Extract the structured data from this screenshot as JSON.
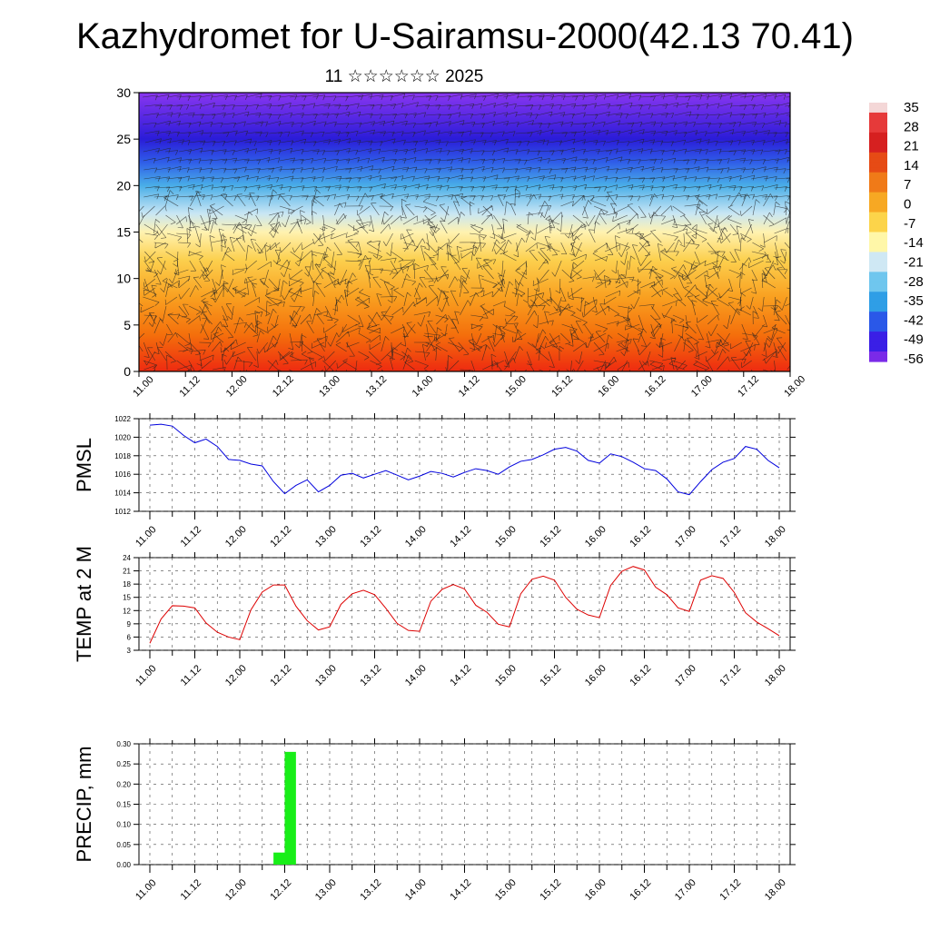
{
  "title": "Kazhydromet for U-Sairamsu-2000(42.13 70.41)",
  "subtitle": "11 ☆☆☆☆☆☆ 2025",
  "time_ticks": [
    "11.00",
    "11.12",
    "12.00",
    "12.12",
    "13.00",
    "13.12",
    "14.00",
    "14.12",
    "15.00",
    "15.12",
    "16.00",
    "16.12",
    "17.00",
    "17.12",
    "18.00"
  ],
  "chart_data": [
    {
      "type": "heatmap",
      "name": "cross-section",
      "ylim": [
        0,
        30
      ],
      "yticks": [
        0,
        5,
        10,
        15,
        20,
        25,
        30
      ],
      "colorbar": {
        "labels": [
          "35",
          "28",
          "21",
          "14",
          "7",
          "0",
          "-7",
          "-14",
          "-21",
          "-28",
          "-35",
          "-42",
          "-49",
          "-56"
        ],
        "colors": [
          "#f4d7d7",
          "#e63a3a",
          "#d62020",
          "#e64b15",
          "#f07a18",
          "#f7a823",
          "#fcd44a",
          "#fff7a8",
          "#cfe8f4",
          "#6fc6ee",
          "#2f9ee6",
          "#2a58e8",
          "#3a1fe6",
          "#7a2ae8"
        ]
      },
      "bands": [
        {
          "level": 0,
          "color": "#ee2a10"
        },
        {
          "level": 4,
          "color": "#f4700c"
        },
        {
          "level": 8,
          "color": "#f9a020"
        },
        {
          "level": 12,
          "color": "#fcd04e"
        },
        {
          "level": 15,
          "color": "#fff2b0"
        },
        {
          "level": 17,
          "color": "#c8e6f4"
        },
        {
          "level": 20,
          "color": "#49aee8"
        },
        {
          "level": 22.5,
          "color": "#2f5ee8"
        },
        {
          "level": 25,
          "color": "#2a1cd8"
        },
        {
          "level": 30,
          "color": "#8a36f0"
        }
      ]
    },
    {
      "type": "line",
      "ylabel": "PMSL",
      "ylim": [
        1012,
        1022
      ],
      "yticks": [
        1012,
        1014,
        1016,
        1018,
        1020,
        1022
      ],
      "color": "#0000dd",
      "x": [
        0,
        3,
        6,
        9,
        12,
        15,
        18,
        21,
        24,
        27,
        30,
        33,
        36,
        39,
        42,
        45,
        48,
        51,
        54,
        57,
        60,
        63,
        66,
        69,
        72,
        75,
        78,
        81,
        84,
        87,
        90,
        93,
        96,
        99,
        102,
        105,
        108,
        111,
        114,
        117,
        120,
        123,
        126,
        129,
        132,
        135,
        138,
        141,
        144,
        147,
        150,
        153,
        156,
        159,
        162,
        165,
        168
      ],
      "values": [
        1021.3,
        1021.4,
        1021.2,
        1020.2,
        1019.4,
        1019.8,
        1019.0,
        1017.6,
        1017.5,
        1017.1,
        1016.9,
        1015.2,
        1013.9,
        1014.8,
        1015.4,
        1014.1,
        1014.8,
        1015.9,
        1016.1,
        1015.6,
        1016.0,
        1016.4,
        1015.9,
        1015.4,
        1015.8,
        1016.3,
        1016.1,
        1015.7,
        1016.2,
        1016.6,
        1016.4,
        1016.0,
        1016.8,
        1017.4,
        1017.6,
        1018.1,
        1018.7,
        1018.9,
        1018.5,
        1017.5,
        1017.2,
        1018.2,
        1017.9,
        1017.3,
        1016.6,
        1016.4,
        1015.5,
        1014.1,
        1013.8,
        1015.2,
        1016.5,
        1017.3,
        1017.7,
        1019.0,
        1018.7,
        1017.5,
        1016.7
      ]
    },
    {
      "type": "line",
      "ylabel": "TEMP at 2 M",
      "ylim": [
        3,
        24
      ],
      "yticks": [
        3,
        6,
        9,
        12,
        15,
        18,
        21,
        24
      ],
      "color": "#dd0000",
      "x": [
        0,
        3,
        6,
        9,
        12,
        15,
        18,
        21,
        24,
        27,
        30,
        33,
        36,
        39,
        42,
        45,
        48,
        51,
        54,
        57,
        60,
        63,
        66,
        69,
        72,
        75,
        78,
        81,
        84,
        87,
        90,
        93,
        96,
        99,
        102,
        105,
        108,
        111,
        114,
        117,
        120,
        123,
        126,
        129,
        132,
        135,
        138,
        141,
        144,
        147,
        150,
        153,
        156,
        159,
        162,
        165,
        168
      ],
      "values": [
        4.6,
        10.1,
        13.1,
        13.0,
        12.6,
        9.2,
        7.1,
        6.0,
        5.4,
        12.2,
        16.2,
        17.8,
        17.8,
        13.0,
        9.7,
        7.6,
        8.3,
        13.4,
        15.8,
        16.6,
        15.6,
        12.5,
        9.1,
        7.5,
        7.3,
        14.1,
        16.8,
        17.9,
        16.9,
        13.2,
        11.6,
        8.9,
        8.3,
        15.8,
        19.1,
        19.8,
        18.9,
        15.0,
        12.3,
        11.0,
        10.4,
        17.7,
        20.9,
        22.0,
        21.2,
        17.3,
        15.6,
        12.6,
        11.8,
        18.9,
        19.9,
        19.3,
        16.1,
        11.5,
        9.4,
        7.9,
        6.3
      ]
    },
    {
      "type": "bar",
      "ylabel": "PRECIP, mm",
      "ylim": [
        0,
        0.3
      ],
      "yticks": [
        "0.00",
        "0.05",
        "0.10",
        "0.15",
        "0.20",
        "0.25",
        "0.30"
      ],
      "color": "#18ee18",
      "x_start": [
        33,
        36
      ],
      "x_end": [
        36,
        39
      ],
      "values": [
        0.03,
        0.28
      ]
    }
  ]
}
